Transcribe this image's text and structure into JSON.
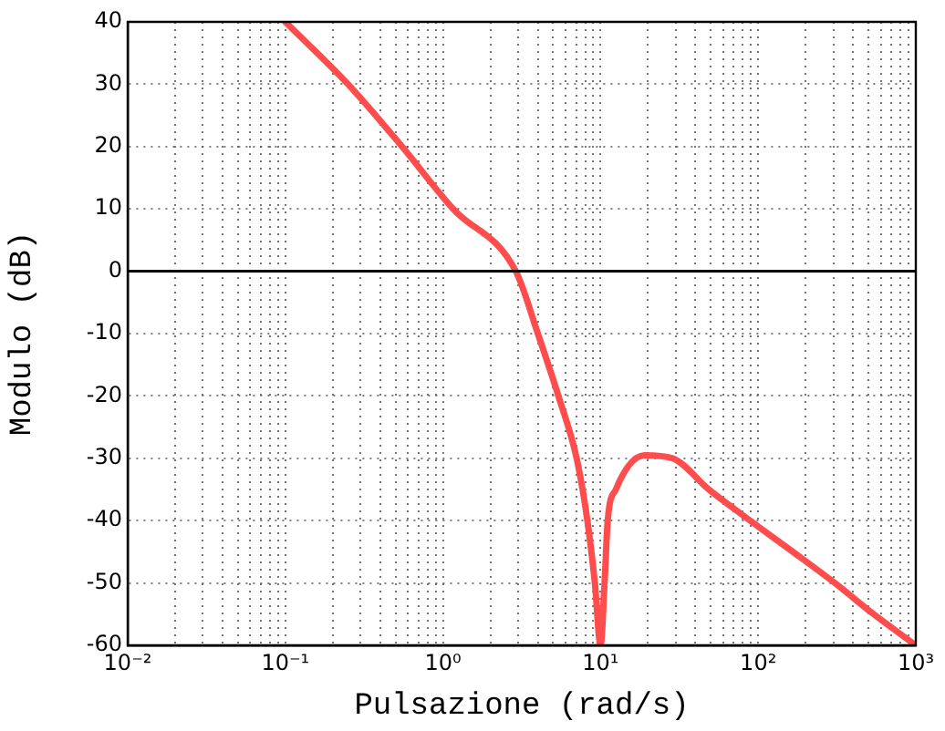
{
  "chart_data": {
    "type": "line",
    "xlabel": "Pulsazione (rad/s)",
    "ylabel": "Modulo (dB)",
    "log": "x",
    "grid": true,
    "marker": "none",
    "line_style": "solid",
    "x": [
      0.1,
      0.25,
      0.55,
      1.16,
      2.9,
      4.0,
      5.4,
      7.05,
      8.25,
      9.2,
      10,
      10.6,
      11.1,
      12.5,
      19,
      28.6,
      48.6,
      89,
      166,
      306,
      540,
      1000
    ],
    "series": [
      {
        "color": "#ff4d4d",
        "values": [
          40,
          30,
          20,
          10,
          0,
          -10,
          -20,
          -30,
          -40,
          -50,
          -60,
          -50,
          -40,
          -35,
          -29.5,
          -30,
          -35,
          -40,
          -45,
          -50,
          -55,
          -60
        ]
      }
    ],
    "xlim": [
      0.01,
      1000
    ],
    "ylim": [
      -60,
      40
    ],
    "xticks": [
      {
        "value": 0.01,
        "label": "10⁻²"
      },
      {
        "value": 0.02,
        "label": null
      },
      {
        "value": 0.03,
        "label": null
      },
      {
        "value": 0.04,
        "label": null
      },
      {
        "value": 0.05,
        "label": null
      },
      {
        "value": 0.06,
        "label": null
      },
      {
        "value": 0.07,
        "label": null
      },
      {
        "value": 0.08,
        "label": null
      },
      {
        "value": 0.09,
        "label": null
      },
      {
        "value": 0.1,
        "label": "10⁻¹"
      },
      {
        "value": 0.2,
        "label": null
      },
      {
        "value": 0.3,
        "label": null
      },
      {
        "value": 0.4,
        "label": null
      },
      {
        "value": 0.5,
        "label": null
      },
      {
        "value": 0.6,
        "label": null
      },
      {
        "value": 0.7,
        "label": null
      },
      {
        "value": 0.8,
        "label": null
      },
      {
        "value": 0.9,
        "label": null
      },
      {
        "value": 1,
        "label": "10⁰"
      },
      {
        "value": 2,
        "label": null
      },
      {
        "value": 3,
        "label": null
      },
      {
        "value": 4,
        "label": null
      },
      {
        "value": 5,
        "label": null
      },
      {
        "value": 6,
        "label": null
      },
      {
        "value": 7,
        "label": null
      },
      {
        "value": 8,
        "label": null
      },
      {
        "value": 9,
        "label": null
      },
      {
        "value": 10,
        "label": "10¹"
      },
      {
        "value": 20,
        "label": null
      },
      {
        "value": 30,
        "label": null
      },
      {
        "value": 40,
        "label": null
      },
      {
        "value": 50,
        "label": null
      },
      {
        "value": 60,
        "label": null
      },
      {
        "value": 70,
        "label": null
      },
      {
        "value": 80,
        "label": null
      },
      {
        "value": 90,
        "label": null
      },
      {
        "value": 100,
        "label": "10²"
      },
      {
        "value": 200,
        "label": null
      },
      {
        "value": 300,
        "label": null
      },
      {
        "value": 400,
        "label": null
      },
      {
        "value": 500,
        "label": null
      },
      {
        "value": 600,
        "label": null
      },
      {
        "value": 700,
        "label": null
      },
      {
        "value": 800,
        "label": null
      },
      {
        "value": 900,
        "label": null
      },
      {
        "value": 1000,
        "label": "10³"
      }
    ],
    "yticks": [
      -60,
      -50,
      -40,
      -30,
      -20,
      -10,
      0,
      10,
      20,
      30,
      40
    ],
    "ref_lines": [
      {
        "axis": "y",
        "value": 0,
        "color": "#000000"
      }
    ]
  }
}
